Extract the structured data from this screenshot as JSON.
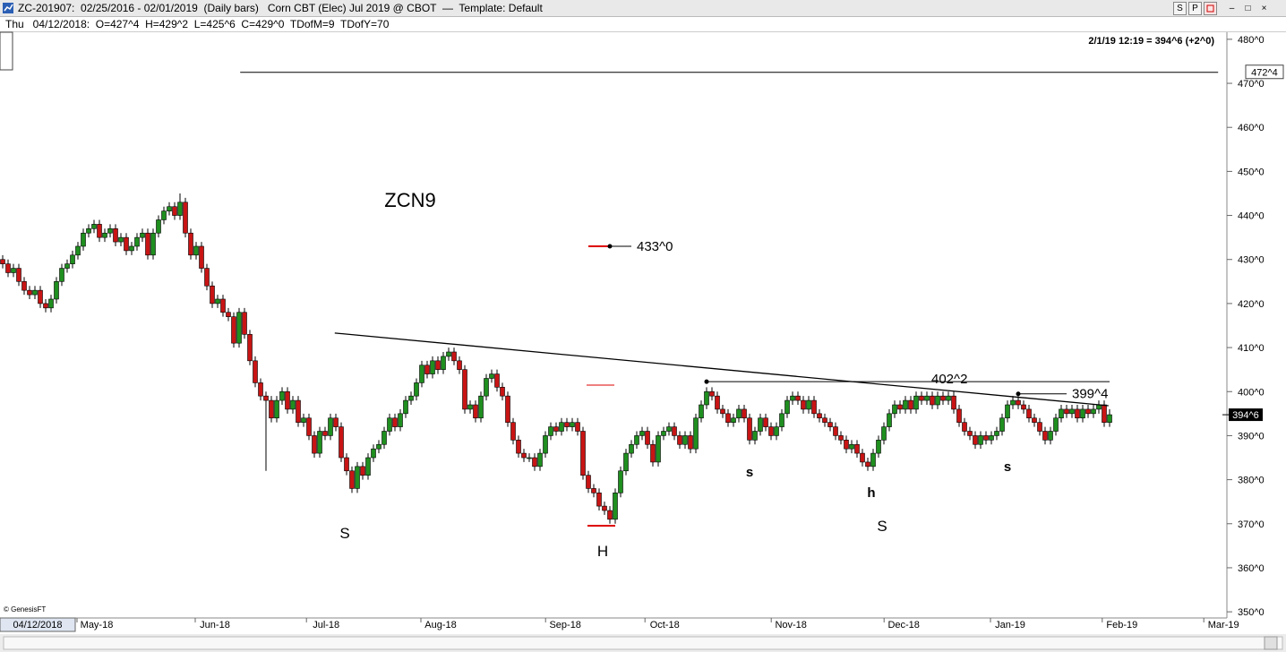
{
  "window": {
    "title": "ZC-201907:  02/25/2016 - 02/01/2019  (Daily bars)   Corn CBT (Elec) Jul 2019 @ CBOT  —  Template: Default",
    "buttons": [
      "S",
      "P"
    ],
    "info": "Thu   04/12/2018:  O=427^4  H=429^2  L=425^6  C=429^0  TDofM=9  TDofY=70"
  },
  "chart_data": {
    "type": "candlestick",
    "title": "ZCN9",
    "quote": "2/1/19 12:19 = 394^6 (+2^0)",
    "cursor_date": "04/12/2018",
    "copyright": "© GenesisFT",
    "up_color": "#1f8f1f",
    "down_color": "#c81414",
    "ohlc": {
      "open": [
        430,
        429,
        427,
        428,
        425,
        423,
        422,
        423,
        420,
        419,
        421,
        425,
        428,
        429,
        431,
        433,
        436,
        437,
        438,
        435,
        436,
        437,
        434,
        435,
        432,
        433,
        435,
        436,
        431,
        436,
        439,
        441,
        442,
        440,
        443,
        436,
        431,
        433,
        428,
        424,
        420,
        421,
        418,
        417,
        411,
        418,
        413,
        407,
        402,
        399,
        398,
        394,
        398,
        400,
        396,
        398,
        393,
        394,
        390,
        386,
        391,
        390,
        394,
        392,
        385,
        382,
        378,
        383,
        381,
        385,
        387,
        388,
        391,
        394,
        392,
        395,
        398,
        399,
        402,
        406,
        404,
        407,
        405,
        408,
        409,
        407,
        405,
        396,
        397,
        394,
        399,
        403,
        404,
        401,
        399,
        393,
        389,
        386,
        385,
        385,
        383,
        386,
        390,
        392,
        391,
        393,
        392,
        393,
        391,
        381,
        378,
        377,
        374,
        373,
        371,
        377,
        382,
        386,
        388,
        390,
        391,
        388,
        384,
        390,
        391,
        392,
        390,
        388,
        390,
        387,
        394,
        397,
        400,
        399,
        396,
        395,
        393,
        394,
        396,
        394,
        389,
        391,
        394,
        392,
        390,
        392,
        395,
        398,
        399,
        398,
        396,
        398,
        395,
        394,
        393,
        392,
        390,
        389,
        387,
        388,
        386,
        384,
        383,
        386,
        389,
        392,
        395,
        397,
        396,
        398,
        396,
        399,
        398,
        399,
        397,
        399,
        398,
        399,
        396,
        393,
        391,
        390,
        388,
        390,
        389,
        390,
        391,
        394,
        397,
        398,
        397,
        396,
        394,
        393,
        391,
        389,
        391,
        394,
        396,
        395,
        396,
        394,
        396,
        395,
        396,
        397,
        393
      ],
      "high": [
        431,
        430,
        429,
        429,
        426,
        424,
        424,
        424,
        421,
        422,
        426,
        429,
        430,
        432,
        434,
        437,
        438,
        439,
        439,
        437,
        438,
        438,
        436,
        436,
        434,
        436,
        437,
        437,
        437,
        440,
        442,
        443,
        443,
        445,
        444,
        437,
        434,
        434,
        429,
        425,
        422,
        422,
        419,
        418,
        419,
        419,
        414,
        408,
        403,
        400,
        399,
        399,
        401,
        401,
        399,
        399,
        395,
        395,
        391,
        392,
        392,
        395,
        395,
        393,
        386,
        383,
        384,
        384,
        386,
        388,
        389,
        392,
        395,
        395,
        396,
        399,
        400,
        403,
        407,
        407,
        408,
        408,
        409,
        410,
        410,
        408,
        406,
        398,
        398,
        400,
        404,
        405,
        405,
        402,
        400,
        394,
        390,
        387,
        386,
        386,
        387,
        391,
        393,
        393,
        394,
        394,
        394,
        394,
        392,
        382,
        379,
        378,
        375,
        374,
        378,
        383,
        387,
        389,
        391,
        392,
        392,
        389,
        391,
        392,
        393,
        393,
        391,
        391,
        391,
        395,
        398,
        401,
        401,
        400,
        397,
        396,
        395,
        397,
        397,
        395,
        392,
        395,
        395,
        393,
        393,
        396,
        399,
        400,
        400,
        399,
        399,
        399,
        396,
        395,
        394,
        393,
        391,
        390,
        389,
        389,
        387,
        385,
        387,
        390,
        393,
        396,
        398,
        398,
        399,
        399,
        400,
        400,
        400,
        400,
        400,
        400,
        400,
        400,
        397,
        394,
        392,
        391,
        391,
        391,
        391,
        392,
        395,
        398,
        399,
        399,
        398,
        397,
        395,
        394,
        392,
        392,
        395,
        397,
        397,
        397,
        397,
        397,
        397,
        397,
        398,
        398,
        396
      ],
      "low": [
        428,
        426,
        426,
        424,
        422,
        421,
        421,
        419,
        418,
        418,
        420,
        424,
        427,
        428,
        430,
        432,
        435,
        436,
        434,
        434,
        435,
        433,
        433,
        431,
        431,
        432,
        434,
        430,
        430,
        435,
        438,
        440,
        439,
        439,
        435,
        430,
        430,
        427,
        423,
        419,
        419,
        417,
        416,
        410,
        410,
        412,
        406,
        401,
        398,
        382,
        393,
        393,
        397,
        395,
        395,
        392,
        392,
        389,
        385,
        385,
        389,
        389,
        391,
        384,
        381,
        377,
        377,
        380,
        380,
        384,
        386,
        387,
        390,
        391,
        391,
        394,
        397,
        398,
        401,
        403,
        403,
        404,
        404,
        407,
        406,
        404,
        395,
        395,
        393,
        393,
        398,
        402,
        400,
        398,
        392,
        388,
        385,
        384,
        384,
        382,
        382,
        385,
        389,
        390,
        390,
        391,
        391,
        390,
        380,
        377,
        376,
        373,
        372,
        370,
        370,
        376,
        381,
        385,
        387,
        389,
        387,
        383,
        383,
        389,
        390,
        389,
        387,
        387,
        386,
        386,
        393,
        396,
        398,
        395,
        394,
        392,
        392,
        393,
        393,
        388,
        388,
        390,
        391,
        389,
        389,
        391,
        394,
        397,
        397,
        395,
        395,
        394,
        393,
        392,
        391,
        389,
        388,
        386,
        386,
        385,
        383,
        382,
        382,
        385,
        388,
        391,
        394,
        395,
        395,
        395,
        395,
        397,
        397,
        396,
        396,
        397,
        397,
        395,
        392,
        390,
        389,
        387,
        387,
        388,
        388,
        389,
        390,
        393,
        396,
        396,
        395,
        393,
        392,
        390,
        388,
        388,
        390,
        393,
        394,
        394,
        393,
        393,
        394,
        394,
        395,
        392,
        392
      ],
      "close": [
        429,
        427,
        428,
        425,
        423,
        422,
        423,
        420,
        419,
        421,
        425,
        428,
        429,
        431,
        433,
        436,
        437,
        438,
        435,
        436,
        437,
        434,
        435,
        432,
        433,
        435,
        436,
        431,
        436,
        439,
        441,
        442,
        440,
        443,
        436,
        431,
        433,
        428,
        424,
        420,
        421,
        418,
        417,
        411,
        418,
        413,
        407,
        402,
        399,
        398,
        394,
        398,
        400,
        396,
        398,
        393,
        394,
        390,
        386,
        391,
        390,
        394,
        392,
        385,
        382,
        378,
        383,
        381,
        385,
        387,
        388,
        391,
        394,
        392,
        395,
        398,
        399,
        402,
        406,
        404,
        407,
        405,
        408,
        409,
        407,
        405,
        396,
        397,
        394,
        399,
        403,
        404,
        401,
        399,
        393,
        389,
        386,
        385,
        385,
        383,
        386,
        390,
        392,
        391,
        393,
        392,
        393,
        391,
        381,
        378,
        377,
        374,
        373,
        371,
        377,
        382,
        386,
        388,
        390,
        391,
        388,
        384,
        390,
        391,
        392,
        390,
        388,
        390,
        387,
        394,
        397,
        400,
        399,
        396,
        395,
        393,
        394,
        396,
        394,
        389,
        391,
        394,
        392,
        390,
        392,
        395,
        398,
        399,
        398,
        396,
        398,
        395,
        394,
        393,
        392,
        390,
        389,
        387,
        388,
        386,
        384,
        383,
        386,
        389,
        392,
        395,
        397,
        396,
        398,
        396,
        399,
        398,
        399,
        397,
        399,
        398,
        399,
        396,
        393,
        391,
        390,
        388,
        390,
        389,
        390,
        391,
        394,
        397,
        398,
        397,
        396,
        394,
        393,
        391,
        389,
        391,
        394,
        396,
        395,
        396,
        394,
        396,
        395,
        396,
        397,
        393,
        394.75
      ]
    },
    "ylim": [
      348.6,
      481.6
    ],
    "yticks": [
      {
        "value": 350,
        "label": "350^0"
      },
      {
        "value": 360,
        "label": "360^0"
      },
      {
        "value": 370,
        "label": "370^0"
      },
      {
        "value": 380,
        "label": "380^0"
      },
      {
        "value": 390,
        "label": "390^0"
      },
      {
        "value": 400,
        "label": "400^0"
      },
      {
        "value": 410,
        "label": "410^0"
      },
      {
        "value": 420,
        "label": "420^0"
      },
      {
        "value": 430,
        "label": "430^0"
      },
      {
        "value": 440,
        "label": "440^0"
      },
      {
        "value": 450,
        "label": "450^0"
      },
      {
        "value": 460,
        "label": "460^0"
      },
      {
        "value": 470,
        "label": "470^0"
      },
      {
        "value": 480,
        "label": "480^0"
      }
    ],
    "xlim": [
      -0.5,
      227.5
    ],
    "xticks": [
      {
        "value": 17.5,
        "label": "May-18"
      },
      {
        "value": 39.5,
        "label": "Jun-18"
      },
      {
        "value": 60.2,
        "label": "Jul-18"
      },
      {
        "value": 81.5,
        "label": "Aug-18"
      },
      {
        "value": 104.7,
        "label": "Sep-18"
      },
      {
        "value": 123.2,
        "label": "Oct-18"
      },
      {
        "value": 146.7,
        "label": "Nov-18"
      },
      {
        "value": 167.7,
        "label": "Dec-18"
      },
      {
        "value": 187.5,
        "label": "Jan-19"
      },
      {
        "value": 208.3,
        "label": "Feb-19"
      },
      {
        "value": 227.2,
        "label": "Mar-19"
      }
    ],
    "levels": [
      {
        "value": 472.5,
        "label": "472^4",
        "x": [
          44.2,
          226.2
        ]
      },
      {
        "value": 433,
        "label": "433^0",
        "x": [
          109,
          117
        ]
      },
      {
        "value": 402.25,
        "label": "402^2",
        "x": [
          131,
          206
        ]
      },
      {
        "value": 399.5,
        "label": "399^4",
        "x": [
          189,
          198
        ]
      }
    ],
    "trendlines": [
      {
        "x": [
          61.8,
          205.8
        ],
        "y": [
          413.3,
          396.8
        ]
      }
    ],
    "last_price": {
      "value": 394.75,
      "label": "394^6"
    },
    "pattern_labels": [
      "S",
      "H",
      "S",
      "s",
      "h",
      "s"
    ]
  }
}
